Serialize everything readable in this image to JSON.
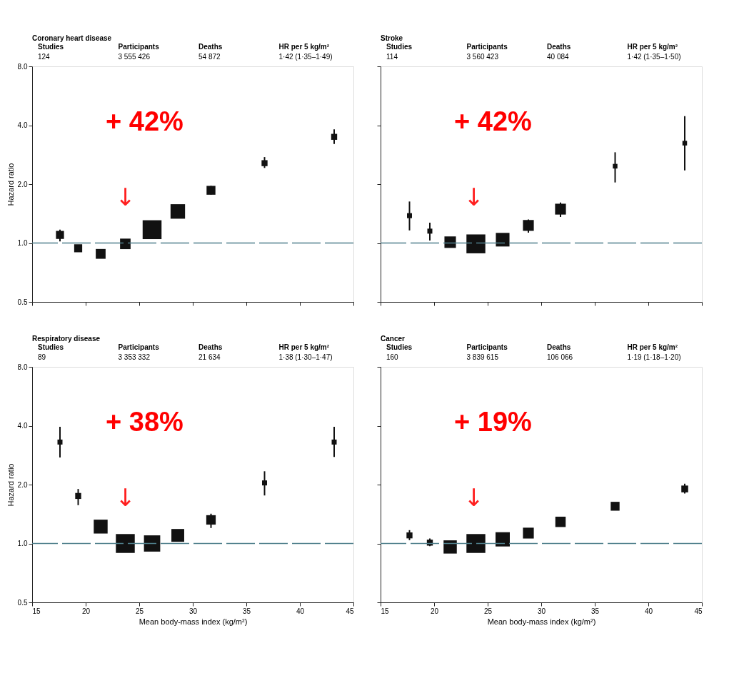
{
  "chart_data": [
    {
      "type": "bubble",
      "title": "Coronary heart disease",
      "ylabel": "Hazard ratio",
      "marker": "square",
      "grid": false,
      "tick_labels": "y",
      "x": [
        17.6,
        19.3,
        21.4,
        23.7,
        26.2,
        28.6,
        31.7,
        36.7,
        43.2
      ],
      "series": [
        {
          "color": "#111111",
          "values": [
            1.1,
            0.94,
            0.88,
            0.99,
            1.17,
            1.45,
            1.86,
            2.56,
            3.49
          ],
          "errors": [
            [
              1.02,
              1.17
            ],
            [
              0.92,
              0.97
            ],
            [
              0.85,
              0.91
            ],
            [
              0.97,
              1.02
            ],
            null,
            null,
            [
              1.77,
              1.96
            ],
            [
              2.42,
              2.75
            ],
            [
              3.21,
              3.81
            ]
          ],
          "sizes": [
            0.18,
            0.18,
            0.27,
            0.31,
            1,
            0.59,
            0.22,
            0.1,
            0.1
          ]
        }
      ],
      "xlim": [
        15,
        45
      ],
      "xticks": [
        15,
        20,
        25,
        30,
        35,
        40,
        45
      ],
      "ylim": [
        0.5,
        8
      ],
      "log": "y",
      "yticks": [
        {
          "value": 0.5,
          "label": "0.5"
        },
        {
          "value": 1,
          "label": "1.0"
        },
        {
          "value": 2,
          "label": "2.0"
        },
        {
          "value": 4,
          "label": "4.0"
        },
        {
          "value": 8,
          "label": "8.0"
        }
      ],
      "ref_lines": [
        {
          "axis": "y",
          "value": 1,
          "color": "#4f7f8c",
          "line_style": "dashed"
        }
      ],
      "annotations": [
        "Studies",
        "124",
        "Participants",
        "3 555 426",
        "Deaths",
        "54 872",
        "HR per 5 kg/m²",
        "1·42 (1·35–1·49)",
        "+ 42%",
        "↓"
      ]
    },
    {
      "type": "bubble",
      "title": "Stroke",
      "marker": "square",
      "grid": false,
      "tick_labels": false,
      "x": [
        17.7,
        19.6,
        21.5,
        23.9,
        26.4,
        28.8,
        31.8,
        36.9,
        43.4
      ],
      "series": [
        {
          "color": "#111111",
          "values": [
            1.38,
            1.15,
            1.01,
            0.99,
            1.04,
            1.23,
            1.49,
            2.47,
            3.24
          ],
          "errors": [
            [
              1.16,
              1.63
            ],
            [
              1.03,
              1.27
            ],
            null,
            null,
            null,
            [
              1.13,
              1.32
            ],
            [
              1.36,
              1.61
            ],
            [
              2.04,
              2.91
            ],
            [
              2.35,
              4.45
            ]
          ],
          "sizes": [
            0.07,
            0.07,
            0.37,
            1,
            0.52,
            0.33,
            0.33,
            0.06,
            0.06
          ]
        }
      ],
      "xlim": [
        15,
        45
      ],
      "xticks": [
        15,
        20,
        25,
        30,
        35,
        40,
        45
      ],
      "ylim": [
        0.5,
        8
      ],
      "log": "y",
      "yticks": [
        {
          "value": 0.5,
          "label": null
        },
        {
          "value": 1,
          "label": null
        },
        {
          "value": 2,
          "label": null
        },
        {
          "value": 4,
          "label": null
        },
        {
          "value": 8,
          "label": null
        }
      ],
      "ref_lines": [
        {
          "axis": "y",
          "value": 1,
          "color": "#4f7f8c",
          "line_style": "dashed"
        }
      ],
      "annotations": [
        "Studies",
        "114",
        "Participants",
        "3 560 423",
        "Deaths",
        "40 084",
        "HR per 5 kg/m²",
        "1·42 (1·35–1·50)",
        "+ 42%",
        "↓"
      ]
    },
    {
      "type": "bubble",
      "title": "Respiratory disease",
      "ylabel": "Hazard ratio",
      "xlabel": "Mean body-mass index (kg/m²)",
      "marker": "square",
      "grid": false,
      "x": [
        17.6,
        19.3,
        21.4,
        23.7,
        26.2,
        28.6,
        31.7,
        36.7,
        43.2
      ],
      "series": [
        {
          "color": "#111111",
          "values": [
            3.3,
            1.75,
            1.22,
            1.0,
            1.0,
            1.1,
            1.32,
            2.04,
            3.3
          ],
          "errors": [
            [
              2.75,
              3.95
            ],
            [
              1.57,
              1.9
            ],
            null,
            null,
            null,
            [
              1.04,
              1.16
            ],
            [
              1.2,
              1.42
            ],
            [
              1.76,
              2.34
            ],
            [
              2.77,
              3.95
            ]
          ],
          "sizes": [
            0.07,
            0.1,
            0.54,
            1,
            0.74,
            0.46,
            0.25,
            0.07,
            0.07
          ]
        }
      ],
      "xlim": [
        15,
        45
      ],
      "xticks": [
        15,
        20,
        25,
        30,
        35,
        40,
        45
      ],
      "ylim": [
        0.5,
        8
      ],
      "log": "y",
      "yticks": [
        {
          "value": 0.5,
          "label": "0.5"
        },
        {
          "value": 1,
          "label": "1.0"
        },
        {
          "value": 2,
          "label": "2.0"
        },
        {
          "value": 4,
          "label": "4.0"
        },
        {
          "value": 8,
          "label": "8.0"
        }
      ],
      "ref_lines": [
        {
          "axis": "y",
          "value": 1,
          "color": "#4f7f8c",
          "line_style": "dashed"
        }
      ],
      "annotations": [
        "Studies",
        "89",
        "Participants",
        "3 353 332",
        "Deaths",
        "21 634",
        "HR per 5 kg/m²",
        "1·38 (1·30–1·47)",
        "+ 38%",
        "↓"
      ]
    },
    {
      "type": "bubble",
      "title": "Cancer",
      "xlabel": "Mean body-mass index (kg/m²)",
      "marker": "square",
      "grid": false,
      "tick_labels": "x",
      "x": [
        17.7,
        19.6,
        21.5,
        23.9,
        26.4,
        28.8,
        31.8,
        36.9,
        43.4
      ],
      "series": [
        {
          "color": "#111111",
          "values": [
            1.1,
            1.01,
            0.96,
            1.0,
            1.05,
            1.13,
            1.29,
            1.55,
            1.9
          ],
          "errors": [
            [
              1.04,
              1.17
            ],
            [
              0.97,
              1.06
            ],
            null,
            null,
            null,
            null,
            null,
            [
              1.5,
              1.6
            ],
            [
              1.8,
              2.02
            ]
          ],
          "sizes": [
            0.1,
            0.1,
            0.49,
            1,
            0.57,
            0.33,
            0.3,
            0.22,
            0.13
          ]
        }
      ],
      "xlim": [
        15,
        45
      ],
      "xticks": [
        15,
        20,
        25,
        30,
        35,
        40,
        45
      ],
      "ylim": [
        0.5,
        8
      ],
      "log": "y",
      "yticks": [
        {
          "value": 0.5,
          "label": null
        },
        {
          "value": 1,
          "label": null
        },
        {
          "value": 2,
          "label": null
        },
        {
          "value": 4,
          "label": null
        },
        {
          "value": 8,
          "label": null
        }
      ],
      "ref_lines": [
        {
          "axis": "y",
          "value": 1,
          "color": "#4f7f8c",
          "line_style": "dashed"
        }
      ],
      "annotations": [
        "Studies",
        "160",
        "Participants",
        "3 839 615",
        "Deaths",
        "106 066",
        "HR per 5 kg/m²",
        "1·19 (1·18–1·20)",
        "+ 19%",
        "↓"
      ]
    }
  ]
}
